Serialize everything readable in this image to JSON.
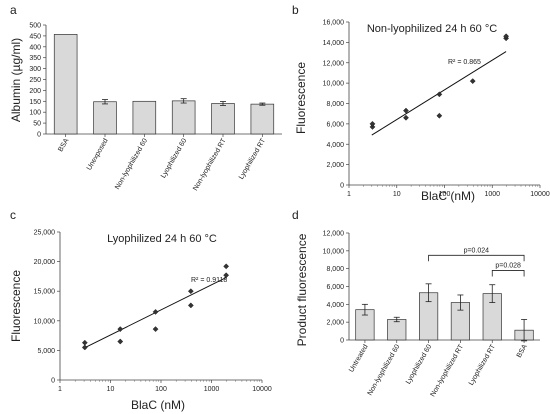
{
  "chart_data": [
    {
      "panel": "a",
      "type": "bar",
      "ylabel": "Albumin (µg/ml)",
      "yticks": [
        0,
        50,
        100,
        150,
        200,
        250,
        300,
        350,
        400,
        450,
        500
      ],
      "ylim": [
        0,
        500
      ],
      "categories": [
        "BSA",
        "Unexposed",
        "Non-lyophilized 60",
        "Lyophilized 60",
        "Non-lyophilized RT",
        "Lyophilized RT"
      ],
      "values": [
        457,
        148,
        150,
        152,
        140,
        137
      ],
      "errors": [
        0,
        10,
        0,
        10,
        9,
        5
      ],
      "bar_color": "#d9d9d9"
    },
    {
      "panel": "b",
      "type": "scatter",
      "title": "Non-lyophilized 24 h 60 °C",
      "xlabel": "BlaC (nM)",
      "ylabel": "Fluorescence",
      "xscale": "log",
      "xlim": [
        1,
        10000
      ],
      "xticks": [
        1,
        10,
        100,
        1000,
        10000
      ],
      "ylim": [
        0,
        16000
      ],
      "yticks": [
        0,
        2000,
        4000,
        6000,
        8000,
        10000,
        12000,
        14000,
        16000
      ],
      "ytick_labels": [
        "0",
        "2,000",
        "4,000",
        "6,000",
        "8,000",
        "10,000",
        "12,000",
        "14,000",
        "16,000"
      ],
      "x": [
        3.1,
        3.1,
        15.6,
        15.6,
        78,
        78,
        390,
        1950,
        1950
      ],
      "y": [
        5700,
        6000,
        6600,
        7300,
        6800,
        8900,
        10200,
        14400,
        14600
      ],
      "r2_label": "R² = 0.865",
      "trendline": {
        "x": [
          3,
          1950
        ],
        "y": [
          4900,
          13100
        ]
      }
    },
    {
      "panel": "c",
      "type": "scatter",
      "title": "Lyophilized 24 h 60 °C",
      "xlabel": "BlaC (nM)",
      "ylabel": "Fluorescence",
      "xscale": "log",
      "xlim": [
        1,
        10000
      ],
      "xticks": [
        1,
        10,
        100,
        1000,
        10000
      ],
      "ylim": [
        0,
        25000
      ],
      "yticks": [
        0,
        5000,
        10000,
        15000,
        20000,
        25000
      ],
      "ytick_labels": [
        "0",
        "5,000",
        "10,000",
        "15,000",
        "20,000",
        "25,000"
      ],
      "x": [
        3.1,
        3.1,
        15.6,
        15.6,
        78,
        78,
        390,
        390,
        1950,
        1950
      ],
      "y": [
        5500,
        6300,
        6500,
        8600,
        8600,
        11500,
        12600,
        15000,
        17700,
        19200
      ],
      "r2_label": "R² = 0.9118",
      "trendline": {
        "x": [
          3,
          1950
        ],
        "y": [
          5400,
          17300
        ]
      }
    },
    {
      "panel": "d",
      "type": "bar",
      "ylabel": "Product  fluorescence",
      "yticks": [
        0,
        2000,
        4000,
        6000,
        8000,
        10000,
        12000
      ],
      "ytick_labels": [
        "0",
        "2,000",
        "4,000",
        "6,000",
        "8,000",
        "10,000",
        "12,000"
      ],
      "ylim": [
        0,
        12000
      ],
      "categories": [
        "Untreated",
        "Non-lyophilized 60",
        "Lyophilized 60",
        "Non-lyophilized RT",
        "Lyophilized RT",
        "BSA"
      ],
      "values": [
        3400,
        2300,
        5300,
        4200,
        5200,
        1100
      ],
      "errors": [
        600,
        250,
        1000,
        850,
        1000,
        1200
      ],
      "bar_color": "#d9d9d9",
      "brackets": [
        {
          "from": 2,
          "to": 5,
          "label": "p=0.024",
          "y": 9500
        },
        {
          "from": 4,
          "to": 5,
          "label": "p=0.028",
          "y": 7800
        }
      ]
    }
  ]
}
